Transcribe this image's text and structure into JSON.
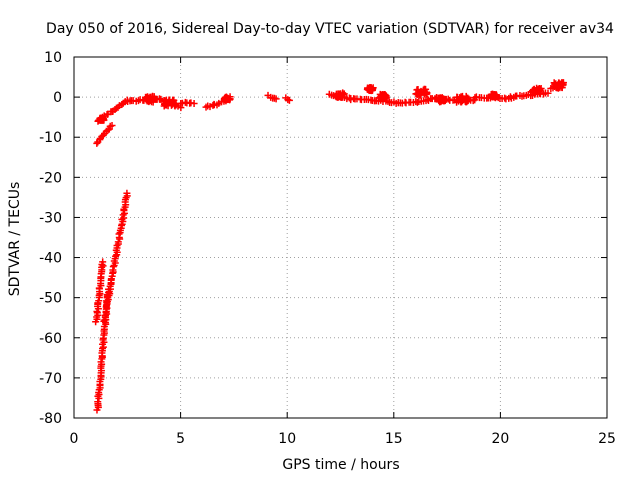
{
  "chart_data": {
    "type": "scatter",
    "title": "Day 050 of 2016, Sidereal Day-to-day VTEC variation (SDTVAR) for receiver av34",
    "xlabel": "GPS time / hours",
    "ylabel": "SDTVAR / TECUs",
    "xlim": [
      0,
      25
    ],
    "ylim": [
      -80,
      10
    ],
    "xticks": [
      0,
      5,
      10,
      15,
      20,
      25
    ],
    "yticks": [
      -80,
      -70,
      -60,
      -50,
      -40,
      -30,
      -20,
      -10,
      0,
      10
    ],
    "grid": true,
    "marker": "+",
    "color": "#ff0000",
    "segments": [
      {
        "x": [
          1.05,
          1.35
        ],
        "y": [
          -56,
          -41
        ]
      },
      {
        "x": [
          1.1,
          1.6
        ],
        "y": [
          -78,
          -48
        ]
      },
      {
        "x": [
          1.4,
          2.5
        ],
        "y": [
          -56,
          -24
        ]
      },
      {
        "x": [
          1.05,
          1.8
        ],
        "y": [
          -11.5,
          -7
        ]
      },
      {
        "x": [
          1.1,
          1.8
        ],
        "y": [
          -6,
          -3.5
        ]
      },
      {
        "x": [
          1.8,
          2.5
        ],
        "y": [
          -3.5,
          -0.8
        ]
      },
      {
        "x": [
          2.5,
          4.0
        ],
        "y": [
          -1,
          -0.5
        ]
      },
      {
        "x": [
          4.0,
          5.0
        ],
        "y": [
          -0.5,
          -2.5
        ]
      },
      {
        "x": [
          5.0,
          5.6
        ],
        "y": [
          -1.5,
          -1.5
        ]
      },
      {
        "x": [
          6.2,
          6.6
        ],
        "y": [
          -2.5,
          -2
        ]
      },
      {
        "x": [
          6.6,
          7.3
        ],
        "y": [
          -2,
          -0.5
        ]
      },
      {
        "x": [
          9.1,
          9.5
        ],
        "y": [
          0.3,
          -0.6
        ]
      },
      {
        "x": [
          9.9,
          10.1
        ],
        "y": [
          -0.3,
          -0.7
        ]
      },
      {
        "x": [
          12.0,
          13.0
        ],
        "y": [
          0.8,
          -0.5
        ]
      },
      {
        "x": [
          13.0,
          14.2
        ],
        "y": [
          -0.4,
          -0.8
        ]
      },
      {
        "x": [
          14.2,
          15.2
        ],
        "y": [
          -0.8,
          -1.5
        ]
      },
      {
        "x": [
          15.2,
          16.6
        ],
        "y": [
          -1.5,
          -1.0
        ]
      },
      {
        "x": [
          16.6,
          18.8
        ],
        "y": [
          -0.5,
          -0.8
        ]
      },
      {
        "x": [
          18.8,
          20.5
        ],
        "y": [
          0,
          -0.3
        ]
      },
      {
        "x": [
          20.5,
          22.2
        ],
        "y": [
          0,
          1.0
        ]
      },
      {
        "x": [
          22.4,
          22.9
        ],
        "y": [
          2.0,
          2.6
        ]
      }
    ],
    "clusters": [
      {
        "x": 1.3,
        "y": -5.5,
        "spread": 0.6
      },
      {
        "x": 3.6,
        "y": -0.5,
        "spread": 1.5
      },
      {
        "x": 4.5,
        "y": -1.5,
        "spread": 1.6
      },
      {
        "x": 7.2,
        "y": -0.3,
        "spread": 0.8
      },
      {
        "x": 12.5,
        "y": 0.5,
        "spread": 1.2
      },
      {
        "x": 13.9,
        "y": 2.0,
        "spread": 0.8
      },
      {
        "x": 14.5,
        "y": 0.2,
        "spread": 1.0
      },
      {
        "x": 16.3,
        "y": 1.2,
        "spread": 1.5
      },
      {
        "x": 17.2,
        "y": -0.6,
        "spread": 1.2
      },
      {
        "x": 18.2,
        "y": -0.5,
        "spread": 1.6
      },
      {
        "x": 19.7,
        "y": 0.4,
        "spread": 0.8
      },
      {
        "x": 21.7,
        "y": 1.6,
        "spread": 1.2
      },
      {
        "x": 22.7,
        "y": 3.0,
        "spread": 1.5
      }
    ]
  }
}
